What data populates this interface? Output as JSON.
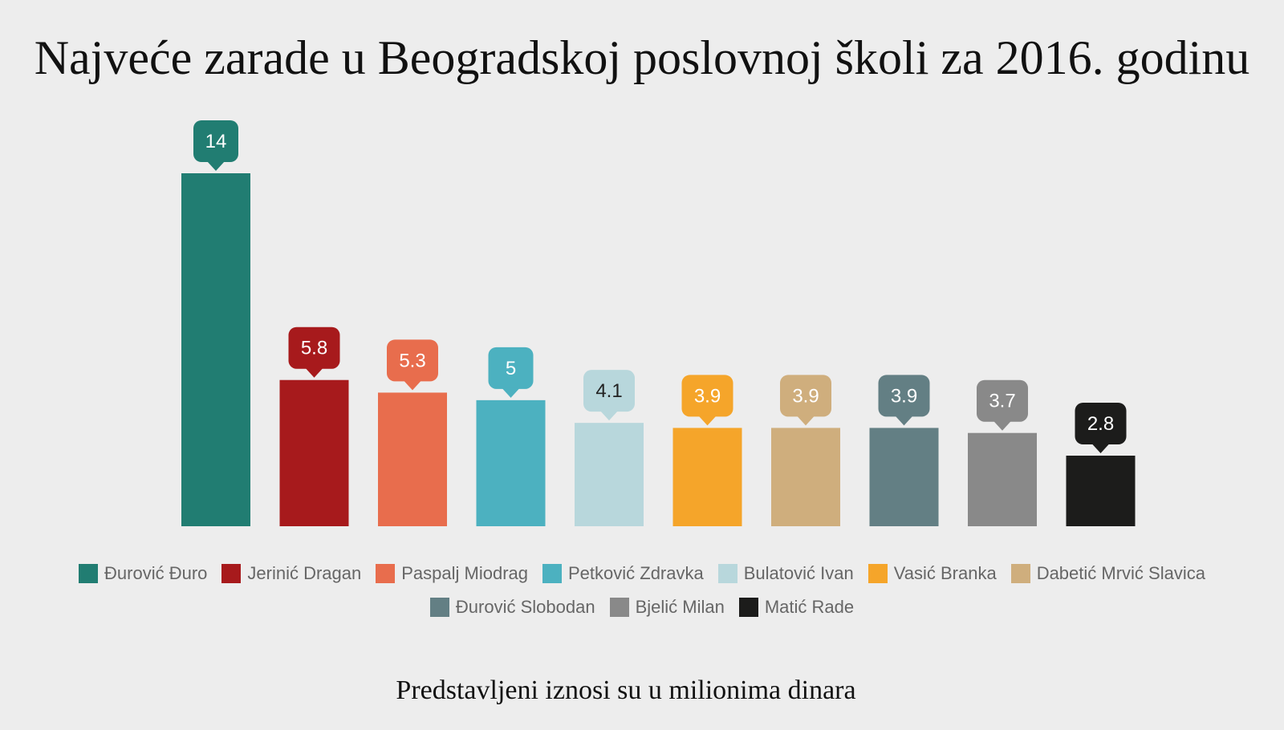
{
  "chart_data": {
    "type": "bar",
    "title": "Najveće zarade u Beogradskoj poslovnoj školi za 2016. godinu",
    "subtitle": "Predstavljeni iznosi su u milionima dinara",
    "xlabel": "",
    "ylabel": "",
    "grid": false,
    "legend_position": "bottom",
    "series": [
      {
        "name": "Đurović Đuro",
        "value": 14,
        "color": "#217d72",
        "label_color": "#ffffff"
      },
      {
        "name": "Jerinić Dragan",
        "value": 5.8,
        "color": "#a71a1c",
        "label_color": "#ffffff"
      },
      {
        "name": "Paspalj Miodrag",
        "value": 5.3,
        "color": "#e86d4d",
        "label_color": "#ffffff"
      },
      {
        "name": "Petković Zdravka",
        "value": 5,
        "color": "#4cb1c0",
        "label_color": "#ffffff"
      },
      {
        "name": "Bulatović Ivan",
        "value": 4.1,
        "color": "#b8d7dc",
        "label_color": "#222222"
      },
      {
        "name": "Vasić Branka",
        "value": 3.9,
        "color": "#f5a52a",
        "label_color": "#ffffff"
      },
      {
        "name": "Dabetić Mrvić Slavica",
        "value": 3.9,
        "color": "#cfae7d",
        "label_color": "#ffffff"
      },
      {
        "name": "Đurović Slobodan",
        "value": 3.9,
        "color": "#637f84",
        "label_color": "#ffffff"
      },
      {
        "name": "Bjelić Milan",
        "value": 3.7,
        "color": "#898989",
        "label_color": "#ffffff"
      },
      {
        "name": "Matić Rade",
        "value": 2.8,
        "color": "#1c1c1b",
        "label_color": "#ffffff"
      }
    ]
  }
}
